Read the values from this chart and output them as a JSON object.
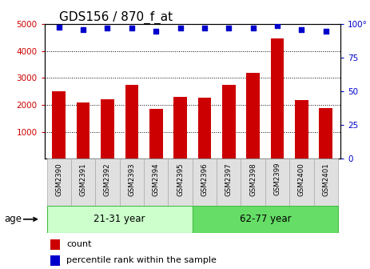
{
  "title": "GDS156 / 870_f_at",
  "samples": [
    "GSM2390",
    "GSM2391",
    "GSM2392",
    "GSM2393",
    "GSM2394",
    "GSM2395",
    "GSM2396",
    "GSM2397",
    "GSM2398",
    "GSM2399",
    "GSM2400",
    "GSM2401"
  ],
  "counts": [
    2500,
    2100,
    2200,
    2750,
    1850,
    2300,
    2280,
    2750,
    3200,
    4480,
    2180,
    1870
  ],
  "percentiles": [
    98,
    96,
    97,
    97,
    95,
    97,
    97,
    97,
    97,
    99,
    96,
    95
  ],
  "groups": [
    {
      "label": "21-31 year",
      "start": 0,
      "end": 6
    },
    {
      "label": "62-77 year",
      "start": 6,
      "end": 12
    }
  ],
  "group_colors": [
    "#ccffcc",
    "#66dd66"
  ],
  "bar_color": "#cc0000",
  "dot_color": "#0000cc",
  "ylim_left": [
    0,
    5000
  ],
  "ylim_right": [
    0,
    100
  ],
  "yticks_left": [
    1000,
    2000,
    3000,
    4000,
    5000
  ],
  "yticks_right": [
    0,
    25,
    50,
    75,
    100
  ],
  "title_fontsize": 11,
  "axis_label_color_left": "#cc0000",
  "axis_label_color_right": "#0000cc",
  "legend_items": [
    "count",
    "percentile rank within the sample"
  ],
  "age_label": "age",
  "bg_color": "#ffffff"
}
